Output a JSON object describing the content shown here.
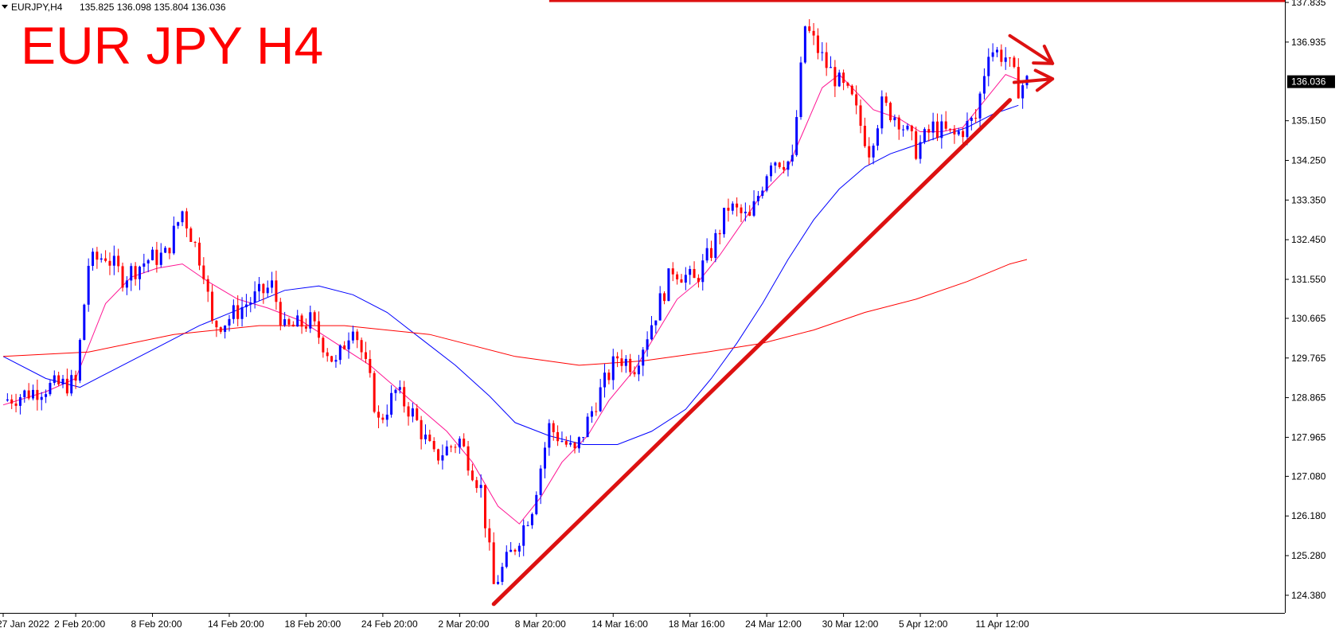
{
  "header": {
    "symbol": "EURJPY,H4",
    "ohlc": "135.825 136.098 135.804 136.036"
  },
  "title": "EUR JPY H4",
  "colors": {
    "bull_candle": "#0000ff",
    "bear_candle": "#ff0000",
    "ma_fast": "#ff1493",
    "ma_mid": "#0000ff",
    "ma_slow": "#ff0000",
    "drawing": "#dd1111",
    "current_price_tag_bg": "#000000",
    "current_price_tag_text": "#ffffff"
  },
  "chart_data": {
    "type": "line",
    "title": "EUR JPY H4",
    "instrument": "EURJPY",
    "timeframe": "H4",
    "ylim": [
      123.98,
      137.89
    ],
    "y_ticks": [
      124.38,
      125.28,
      126.18,
      127.08,
      127.965,
      128.865,
      129.765,
      130.665,
      131.55,
      132.45,
      133.35,
      134.25,
      135.15,
      136.935,
      137.835
    ],
    "y_tick_labels": [
      "124.380",
      "125.280",
      "126.180",
      "127.080",
      "127.965",
      "128.865",
      "129.765",
      "130.665",
      "131.550",
      "132.450",
      "133.350",
      "134.250",
      "135.150",
      "136.935",
      "137.835"
    ],
    "current_price": 136.036,
    "current_price_label": "136.036",
    "x_tick_labels": [
      "27 Jan 2022",
      "2 Feb 20:00",
      "8 Feb 20:00",
      "14 Feb 20:00",
      "18 Feb 20:00",
      "24 Feb 20:00",
      "2 Mar 20:00",
      "8 Mar 20:00",
      "14 Mar 16:00",
      "18 Mar 16:00",
      "24 Mar 12:00",
      "30 Mar 12:00",
      "5 Apr 12:00",
      "11 Apr 12:00"
    ],
    "x_tick_index": [
      0,
      17,
      35,
      53,
      71,
      89,
      107,
      125,
      143,
      161,
      179,
      197,
      215,
      233
    ],
    "bars_total": 240,
    "series": [
      {
        "name": "price_path",
        "points": [
          [
            0,
            128.8
          ],
          [
            10,
            129.1
          ],
          [
            17,
            129.2
          ],
          [
            20,
            131.9
          ],
          [
            24,
            132.1
          ],
          [
            28,
            131.6
          ],
          [
            34,
            132.0
          ],
          [
            38,
            132.1
          ],
          [
            42,
            133.1
          ],
          [
            47,
            131.8
          ],
          [
            49,
            130.5
          ],
          [
            52,
            130.6
          ],
          [
            57,
            131.0
          ],
          [
            63,
            131.4
          ],
          [
            66,
            130.4
          ],
          [
            72,
            130.6
          ],
          [
            78,
            129.6
          ],
          [
            82,
            130.6
          ],
          [
            86,
            129.2
          ],
          [
            88,
            128.3
          ],
          [
            92,
            129.0
          ],
          [
            96,
            128.5
          ],
          [
            101,
            127.5
          ],
          [
            107,
            127.9
          ],
          [
            112,
            126.8
          ],
          [
            115,
            124.6
          ],
          [
            120,
            125.5
          ],
          [
            124,
            126.4
          ],
          [
            128,
            128.2
          ],
          [
            134,
            127.6
          ],
          [
            139,
            128.8
          ],
          [
            144,
            129.8
          ],
          [
            148,
            129.6
          ],
          [
            153,
            130.8
          ],
          [
            157,
            131.8
          ],
          [
            162,
            131.5
          ],
          [
            166,
            132.2
          ],
          [
            170,
            133.2
          ],
          [
            175,
            132.9
          ],
          [
            180,
            134.3
          ],
          [
            185,
            134.2
          ],
          [
            188,
            137.3
          ],
          [
            193,
            136.4
          ],
          [
            199,
            135.6
          ],
          [
            203,
            134.5
          ],
          [
            206,
            135.5
          ],
          [
            210,
            135.2
          ],
          [
            214,
            134.5
          ],
          [
            218,
            135.0
          ],
          [
            223,
            134.8
          ],
          [
            228,
            135.2
          ],
          [
            231,
            136.8
          ],
          [
            235,
            136.6
          ],
          [
            238,
            135.9
          ],
          [
            240,
            136.04
          ]
        ]
      },
      {
        "name": "ma_fast",
        "points": [
          [
            0,
            128.7
          ],
          [
            10,
            129.0
          ],
          [
            17,
            129.3
          ],
          [
            24,
            131.0
          ],
          [
            30,
            131.6
          ],
          [
            36,
            131.8
          ],
          [
            42,
            131.9
          ],
          [
            48,
            131.5
          ],
          [
            55,
            131.1
          ],
          [
            62,
            130.9
          ],
          [
            70,
            130.6
          ],
          [
            78,
            130.1
          ],
          [
            86,
            129.6
          ],
          [
            92,
            129.1
          ],
          [
            98,
            128.6
          ],
          [
            104,
            128.1
          ],
          [
            110,
            127.4
          ],
          [
            116,
            126.4
          ],
          [
            121,
            126.0
          ],
          [
            126,
            126.6
          ],
          [
            131,
            127.4
          ],
          [
            137,
            128.0
          ],
          [
            142,
            128.8
          ],
          [
            148,
            129.5
          ],
          [
            153,
            130.3
          ],
          [
            158,
            131.1
          ],
          [
            163,
            131.5
          ],
          [
            168,
            132.1
          ],
          [
            173,
            132.8
          ],
          [
            178,
            133.5
          ],
          [
            184,
            134.1
          ],
          [
            188,
            135.0
          ],
          [
            192,
            135.9
          ],
          [
            196,
            136.2
          ],
          [
            200,
            135.8
          ],
          [
            204,
            135.4
          ],
          [
            210,
            135.2
          ],
          [
            215,
            134.9
          ],
          [
            220,
            134.9
          ],
          [
            225,
            135.0
          ],
          [
            230,
            135.6
          ],
          [
            235,
            136.2
          ],
          [
            240,
            136.0
          ]
        ]
      },
      {
        "name": "ma_mid",
        "points": [
          [
            0,
            129.8
          ],
          [
            10,
            129.3
          ],
          [
            18,
            129.1
          ],
          [
            26,
            129.5
          ],
          [
            36,
            130.0
          ],
          [
            46,
            130.5
          ],
          [
            56,
            130.9
          ],
          [
            66,
            131.3
          ],
          [
            74,
            131.4
          ],
          [
            82,
            131.2
          ],
          [
            90,
            130.8
          ],
          [
            98,
            130.2
          ],
          [
            106,
            129.6
          ],
          [
            114,
            128.9
          ],
          [
            120,
            128.3
          ],
          [
            128,
            128.0
          ],
          [
            136,
            127.8
          ],
          [
            144,
            127.8
          ],
          [
            152,
            128.1
          ],
          [
            160,
            128.6
          ],
          [
            166,
            129.3
          ],
          [
            172,
            130.1
          ],
          [
            178,
            131.0
          ],
          [
            184,
            132.0
          ],
          [
            190,
            132.9
          ],
          [
            196,
            133.6
          ],
          [
            202,
            134.1
          ],
          [
            208,
            134.4
          ],
          [
            214,
            134.6
          ],
          [
            220,
            134.8
          ],
          [
            226,
            135.0
          ],
          [
            232,
            135.3
          ],
          [
            238,
            135.5
          ]
        ]
      },
      {
        "name": "ma_slow",
        "points": [
          [
            0,
            129.8
          ],
          [
            20,
            129.9
          ],
          [
            40,
            130.3
          ],
          [
            60,
            130.5
          ],
          [
            80,
            130.5
          ],
          [
            100,
            130.3
          ],
          [
            120,
            129.8
          ],
          [
            135,
            129.6
          ],
          [
            150,
            129.7
          ],
          [
            165,
            129.9
          ],
          [
            178,
            130.1
          ],
          [
            190,
            130.4
          ],
          [
            202,
            130.8
          ],
          [
            214,
            131.1
          ],
          [
            226,
            131.5
          ],
          [
            236,
            131.9
          ],
          [
            240,
            132.0
          ]
        ]
      }
    ],
    "annotations": [
      {
        "type": "horizontal_line",
        "level": 137.87,
        "from_index": 128
      },
      {
        "type": "trendline",
        "from": [
          115,
          124.18
        ],
        "to": [
          236,
          135.62
        ]
      },
      {
        "type": "arrow",
        "direction": "down-right",
        "from": [
          236,
          137.08
        ],
        "to": [
          246,
          136.45
        ]
      },
      {
        "type": "arrow",
        "direction": "up-right",
        "from": [
          237,
          136.02
        ],
        "to": [
          246,
          136.1
        ]
      }
    ]
  }
}
